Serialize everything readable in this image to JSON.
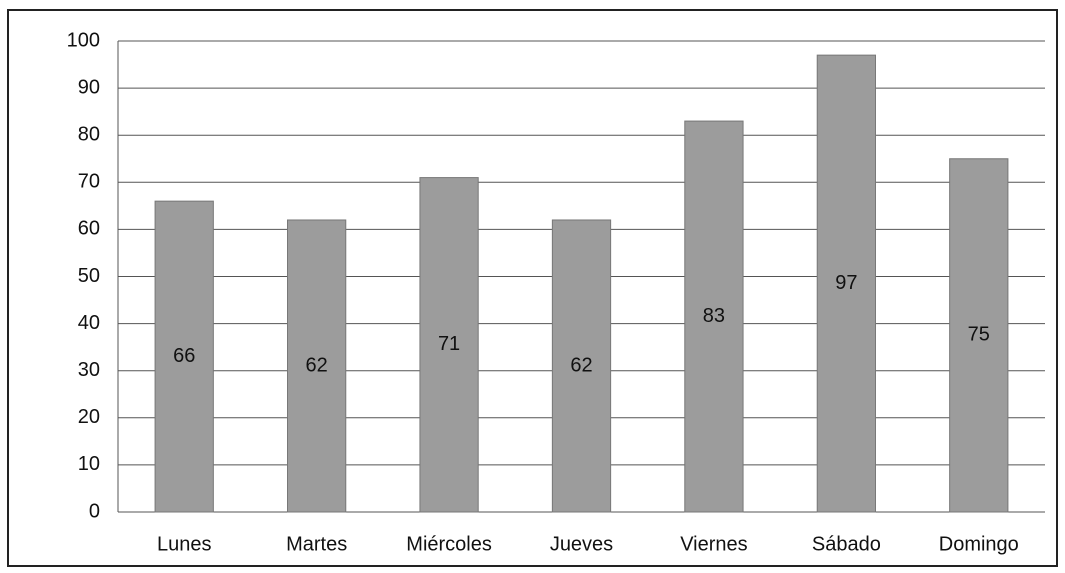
{
  "chart_data": {
    "type": "bar",
    "categories": [
      "Lunes",
      "Martes",
      "Miércoles",
      "Jueves",
      "Viernes",
      "Sábado",
      "Domingo"
    ],
    "values": [
      66,
      62,
      71,
      62,
      83,
      97,
      75
    ],
    "color": "#9c9c9c",
    "ylim": [
      0,
      100
    ],
    "yticks": [
      0,
      10,
      20,
      30,
      40,
      50,
      60,
      70,
      80,
      90,
      100
    ],
    "grid": true,
    "data_labels": true
  }
}
